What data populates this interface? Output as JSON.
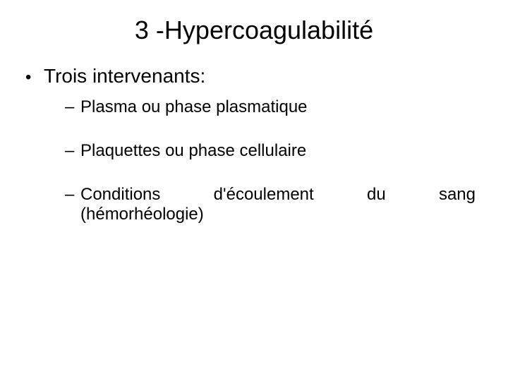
{
  "slide": {
    "title": "3 -Hypercoagulabilité",
    "heading": "Trois intervenants:",
    "items": [
      "Plasma ou phase plasmatique",
      "Plaquettes ou phase cellulaire"
    ],
    "item3_line1": "Conditions d'écoulement du sang",
    "item3_line2": "(hémorhéologie)",
    "bullet_l1_marker": "•",
    "bullet_l2_marker": "–"
  },
  "style": {
    "background_color": "#ffffff",
    "text_color": "#000000",
    "title_fontsize": 36,
    "body_fontsize": 28,
    "sub_fontsize": 24,
    "font_family": "Arial"
  }
}
